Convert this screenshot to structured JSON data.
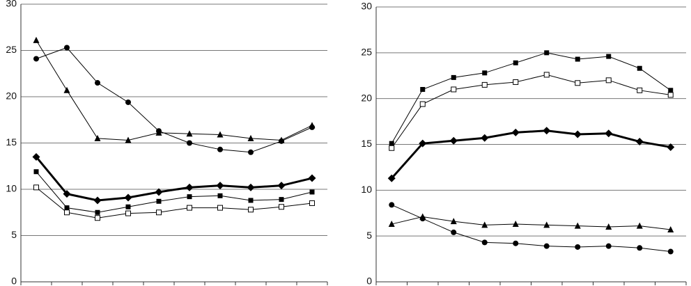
{
  "chart_data": [
    {
      "type": "line",
      "categories": [
        null,
        null,
        null,
        null,
        null,
        null,
        null,
        null,
        null,
        null
      ],
      "ylim": [
        0,
        30
      ],
      "yticks": [
        0,
        5,
        10,
        15,
        20,
        25,
        30
      ],
      "grid": true,
      "series": [
        {
          "color": "#000000",
          "marker": "circle",
          "line_width": 1,
          "values": [
            24.1,
            25.3,
            21.5,
            19.4,
            16.3,
            15.0,
            14.3,
            14.0,
            15.2,
            16.7
          ]
        },
        {
          "color": "#000000",
          "marker": "triangle",
          "line_width": 1,
          "values": [
            26.1,
            20.7,
            15.5,
            15.3,
            16.1,
            16.0,
            15.9,
            15.5,
            15.3,
            16.9
          ]
        },
        {
          "color": "#000000",
          "marker": "diamond",
          "line_width": 3,
          "values": [
            13.5,
            9.5,
            8.8,
            9.1,
            9.7,
            10.2,
            10.4,
            10.2,
            10.4,
            11.2
          ]
        },
        {
          "color": "#000000",
          "marker": "square",
          "line_width": 1,
          "values": [
            11.9,
            8.0,
            7.5,
            8.1,
            8.7,
            9.2,
            9.3,
            8.8,
            8.9,
            9.7
          ]
        },
        {
          "color": "#000000",
          "marker": "square-open",
          "line_width": 1,
          "values": [
            10.2,
            7.5,
            6.9,
            7.4,
            7.5,
            8.0,
            8.0,
            7.8,
            8.1,
            8.5
          ]
        }
      ]
    },
    {
      "type": "line",
      "categories": [
        null,
        null,
        null,
        null,
        null,
        null,
        null,
        null,
        null,
        null
      ],
      "ylim": [
        0,
        30
      ],
      "yticks": [
        0,
        5,
        10,
        15,
        20,
        25,
        30
      ],
      "grid": true,
      "series": [
        {
          "color": "#000000",
          "marker": "square",
          "line_width": 1,
          "values": [
            15.1,
            21.0,
            22.3,
            22.8,
            23.9,
            25.0,
            24.3,
            24.6,
            23.3,
            20.9
          ]
        },
        {
          "color": "#000000",
          "marker": "square-open",
          "line_width": 1,
          "values": [
            14.6,
            19.4,
            21.0,
            21.5,
            21.8,
            22.6,
            21.7,
            22.0,
            20.9,
            20.4
          ]
        },
        {
          "color": "#000000",
          "marker": "diamond",
          "line_width": 3,
          "values": [
            11.3,
            15.1,
            15.4,
            15.7,
            16.3,
            16.5,
            16.1,
            16.2,
            15.3,
            14.7
          ]
        },
        {
          "color": "#000000",
          "marker": "triangle",
          "line_width": 1,
          "values": [
            6.3,
            7.1,
            6.6,
            6.2,
            6.3,
            6.2,
            6.1,
            6.0,
            6.1,
            5.7
          ]
        },
        {
          "color": "#000000",
          "marker": "circle",
          "line_width": 1,
          "values": [
            8.4,
            6.9,
            5.4,
            4.3,
            4.2,
            3.9,
            3.8,
            3.9,
            3.7,
            3.3
          ]
        }
      ]
    }
  ]
}
